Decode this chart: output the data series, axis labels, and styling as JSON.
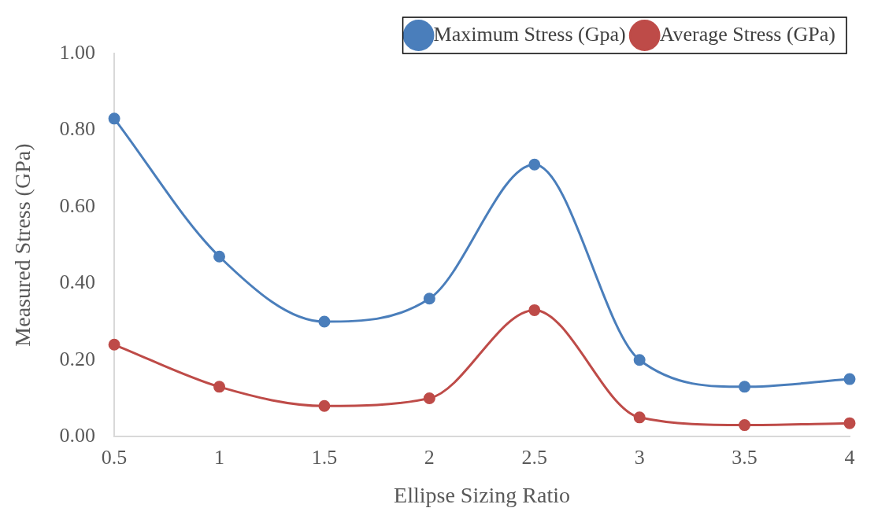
{
  "chart_data": {
    "type": "line",
    "xlabel": "Ellipse Sizing Ratio",
    "ylabel": "Measured Stress (GPa)",
    "categories": [
      "0.5",
      "1",
      "1.5",
      "2",
      "2.5",
      "3",
      "3.5",
      "4"
    ],
    "series": [
      {
        "name": "Maximum Stress (Gpa)",
        "color": "#4a7ebb",
        "values": [
          0.83,
          0.47,
          0.3,
          0.36,
          0.71,
          0.2,
          0.13,
          0.15
        ]
      },
      {
        "name": "Average Stress (GPa)",
        "color": "#be4b48",
        "values": [
          0.24,
          0.13,
          0.08,
          0.1,
          0.33,
          0.05,
          0.03,
          0.035
        ]
      }
    ],
    "ylim": [
      0,
      1
    ],
    "yticks": [
      {
        "value": 0,
        "label": "0.00"
      },
      {
        "value": 0.2,
        "label": "0.20"
      },
      {
        "value": 0.4,
        "label": "0.40"
      },
      {
        "value": 0.6,
        "label": "0.60"
      },
      {
        "value": 0.8,
        "label": "0.80"
      },
      {
        "value": 1,
        "label": "1.00"
      }
    ],
    "grid": false,
    "legend": "top right",
    "marker": "circle",
    "line_style": "solid"
  }
}
